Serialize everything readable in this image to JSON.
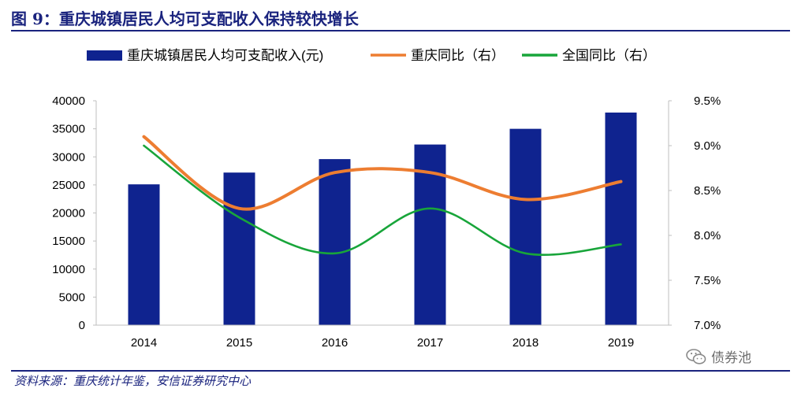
{
  "title": "图 9：重庆城镇居民人均可支配收入保持较快增长",
  "source": "资料来源：重庆统计年鉴，安信证券研究中心",
  "watermark": "债券池",
  "colors": {
    "bar": "#0f238f",
    "cq": "#ed7d31",
    "cn": "#18a53a",
    "accent": "#1a237e"
  },
  "chart_data": {
    "type": "bar+line",
    "categories": [
      "2014",
      "2015",
      "2016",
      "2017",
      "2018",
      "2019"
    ],
    "series": [
      {
        "name": "重庆城镇居民人均可支配收入(元)",
        "type": "bar",
        "axis": "left",
        "values": [
          25100,
          27200,
          29600,
          32200,
          35000,
          37900
        ]
      },
      {
        "name": "重庆同比（右）",
        "type": "line",
        "axis": "right",
        "values": [
          9.1,
          8.3,
          8.7,
          8.7,
          8.4,
          8.6
        ]
      },
      {
        "name": "全国同比（右）",
        "type": "line",
        "axis": "right",
        "values": [
          9.0,
          8.2,
          7.8,
          8.3,
          7.8,
          7.9
        ]
      }
    ],
    "left_axis": {
      "ylim": [
        0,
        40000
      ],
      "ticks": [
        "0",
        "5000",
        "10000",
        "15000",
        "20000",
        "25000",
        "30000",
        "35000",
        "40000"
      ]
    },
    "right_axis": {
      "ylim": [
        7.0,
        9.5
      ],
      "ticks": [
        "7.0%",
        "7.5%",
        "8.0%",
        "8.5%",
        "9.0%",
        "9.5%"
      ]
    },
    "legend_position": "top"
  }
}
